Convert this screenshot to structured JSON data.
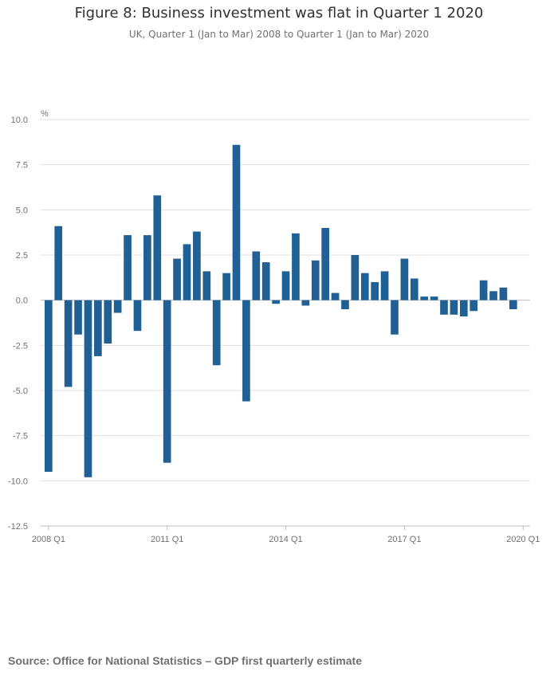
{
  "title": "Figure 8: Business investment was flat in Quarter 1 2020",
  "subtitle": "UK, Quarter 1 (Jan to Mar) 2008 to Quarter 1 (Jan to Mar) 2020",
  "source": "Source: Office for National Statistics – GDP first quarterly estimate",
  "colors": {
    "bar": "#206095",
    "grid": "#e0e0e0",
    "axis_text": "#707071"
  },
  "chart_data": {
    "type": "bar",
    "ylabel": "%",
    "ylim": [
      -12.5,
      10.0
    ],
    "yticks": [
      "10.0",
      "7.5",
      "5.0",
      "2.5",
      "0.0",
      "-2.5",
      "-5.0",
      "-7.5",
      "-10.0",
      "-12.5"
    ],
    "ytick_values": [
      10.0,
      7.5,
      5.0,
      2.5,
      0.0,
      -2.5,
      -5.0,
      -7.5,
      -10.0,
      -12.5
    ],
    "xticks": [
      {
        "index": 0,
        "label": "2008 Q1"
      },
      {
        "index": 12,
        "label": "2011 Q1"
      },
      {
        "index": 24,
        "label": "2014 Q1"
      },
      {
        "index": 36,
        "label": "2017 Q1"
      },
      {
        "index": 48,
        "label": "2020 Q1"
      }
    ],
    "grid": true,
    "categories": [
      "2008 Q1",
      "2008 Q2",
      "2008 Q3",
      "2008 Q4",
      "2009 Q1",
      "2009 Q2",
      "2009 Q3",
      "2009 Q4",
      "2010 Q1",
      "2010 Q2",
      "2010 Q3",
      "2010 Q4",
      "2011 Q1",
      "2011 Q2",
      "2011 Q3",
      "2011 Q4",
      "2012 Q1",
      "2012 Q2",
      "2012 Q3",
      "2012 Q4",
      "2013 Q1",
      "2013 Q2",
      "2013 Q3",
      "2013 Q4",
      "2014 Q1",
      "2014 Q2",
      "2014 Q3",
      "2014 Q4",
      "2015 Q1",
      "2015 Q2",
      "2015 Q3",
      "2015 Q4",
      "2016 Q1",
      "2016 Q2",
      "2016 Q3",
      "2016 Q4",
      "2017 Q1",
      "2017 Q2",
      "2017 Q3",
      "2017 Q4",
      "2018 Q1",
      "2018 Q2",
      "2018 Q3",
      "2018 Q4",
      "2019 Q1",
      "2019 Q2",
      "2019 Q3",
      "2019 Q4",
      "2020 Q1"
    ],
    "values": [
      -9.5,
      4.1,
      -4.8,
      -1.9,
      -9.8,
      -3.1,
      -2.4,
      -0.7,
      3.6,
      -1.7,
      3.6,
      5.8,
      -9.0,
      2.3,
      3.1,
      3.8,
      1.6,
      -3.6,
      1.5,
      8.6,
      -5.6,
      2.7,
      2.1,
      -0.2,
      1.6,
      3.7,
      -0.3,
      2.2,
      4.0,
      0.4,
      -0.5,
      2.5,
      1.5,
      1.0,
      1.6,
      -1.9,
      2.3,
      1.2,
      0.2,
      0.2,
      -0.8,
      -0.8,
      -0.9,
      -0.6,
      1.1,
      0.5,
      0.7,
      -0.5,
      0.0
    ]
  }
}
